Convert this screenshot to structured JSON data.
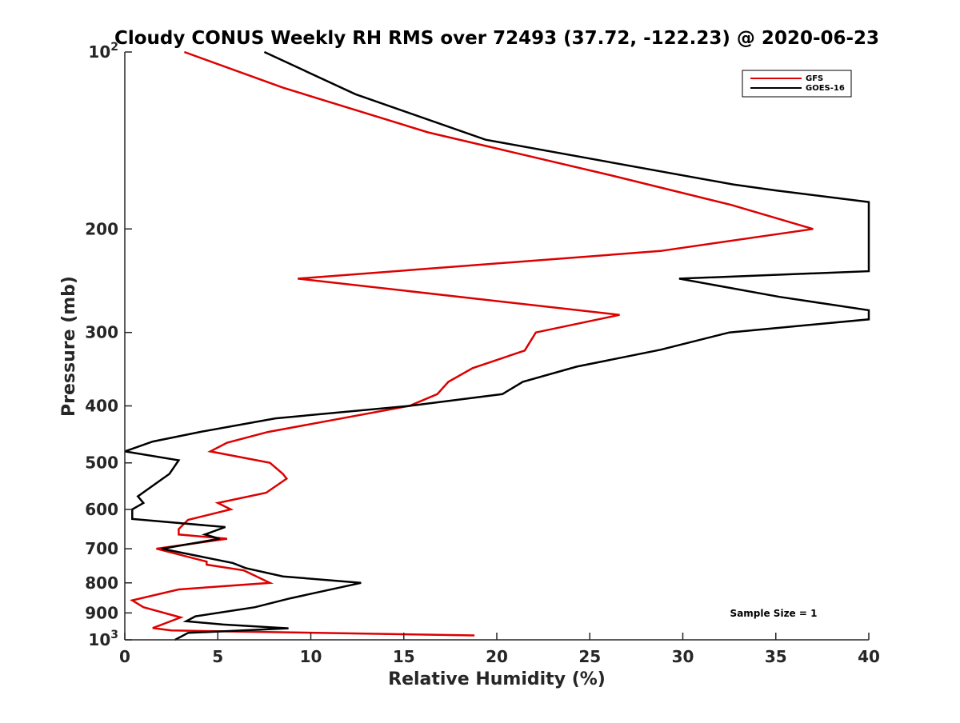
{
  "chart_data": {
    "type": "line",
    "title": "Cloudy CONUS Weekly RH RMS over 72493 (37.72, -122.23) @ 2020-06-23",
    "xlabel": "Relative Humidity (%)",
    "ylabel": "Pressure (mb)",
    "xlim": [
      0,
      40
    ],
    "ylim": [
      100,
      1000
    ],
    "y_scale": "log",
    "y_reversed": true,
    "x_ticks": [
      "0",
      "5",
      "10",
      "15",
      "20",
      "25",
      "30",
      "35",
      "40"
    ],
    "y_ticks": [
      {
        "value": 100,
        "base": "10",
        "exp": "2"
      },
      {
        "value": 200,
        "label": "200"
      },
      {
        "value": 300,
        "label": "300"
      },
      {
        "value": 400,
        "label": "400"
      },
      {
        "value": 500,
        "label": "500"
      },
      {
        "value": 600,
        "label": "600"
      },
      {
        "value": 700,
        "label": "700"
      },
      {
        "value": 800,
        "label": "800"
      },
      {
        "value": 900,
        "label": "900"
      },
      {
        "value": 1000,
        "base": "10",
        "exp": "3"
      }
    ],
    "grid": false,
    "legend_position": "top-right",
    "annotation": "Sample Size = 1",
    "series": [
      {
        "name": "GFS",
        "color": "#dd0000",
        "points": [
          [
            3.2,
            100
          ],
          [
            8.5,
            115
          ],
          [
            16.3,
            137
          ],
          [
            26.1,
            162
          ],
          [
            32.6,
            182
          ],
          [
            37.0,
            200
          ],
          [
            28.8,
            218
          ],
          [
            9.3,
            243
          ],
          [
            26.6,
            280
          ],
          [
            22.1,
            300
          ],
          [
            21.5,
            322
          ],
          [
            18.7,
            345
          ],
          [
            17.4,
            364
          ],
          [
            16.8,
            382
          ],
          [
            15.3,
            400
          ],
          [
            7.7,
            443
          ],
          [
            5.5,
            462
          ],
          [
            4.6,
            478
          ],
          [
            7.8,
            500
          ],
          [
            8.5,
            522
          ],
          [
            8.7,
            532
          ],
          [
            7.6,
            562
          ],
          [
            5.0,
            585
          ],
          [
            5.7,
            600
          ],
          [
            3.4,
            625
          ],
          [
            2.9,
            648
          ],
          [
            2.9,
            662
          ],
          [
            5.5,
            673
          ],
          [
            1.7,
            700
          ],
          [
            4.4,
            736
          ],
          [
            4.4,
            745
          ],
          [
            6.4,
            762
          ],
          [
            7.8,
            800
          ],
          [
            2.9,
            821
          ],
          [
            0.4,
            857
          ],
          [
            1.0,
            880
          ],
          [
            3.0,
            916
          ],
          [
            1.5,
            955
          ],
          [
            2.5,
            964
          ],
          [
            18.8,
            983
          ]
        ]
      },
      {
        "name": "GOES-16",
        "color": "#000000",
        "points": [
          [
            7.5,
            100
          ],
          [
            12.4,
            118
          ],
          [
            19.4,
            141
          ],
          [
            32.7,
            168
          ],
          [
            35.0,
            172
          ],
          [
            40.0,
            180
          ],
          [
            40.0,
            236
          ],
          [
            29.8,
            243
          ],
          [
            35.2,
            261
          ],
          [
            40.0,
            275
          ],
          [
            40.0,
            285
          ],
          [
            32.5,
            300
          ],
          [
            28.8,
            321
          ],
          [
            24.3,
            343
          ],
          [
            21.4,
            364
          ],
          [
            20.3,
            382
          ],
          [
            15.3,
            400
          ],
          [
            8.1,
            420
          ],
          [
            4.2,
            442
          ],
          [
            1.5,
            460
          ],
          [
            0.0,
            478
          ],
          [
            2.9,
            495
          ],
          [
            2.4,
            522
          ],
          [
            0.7,
            570
          ],
          [
            1.0,
            585
          ],
          [
            0.4,
            600
          ],
          [
            0.4,
            623
          ],
          [
            5.4,
            643
          ],
          [
            4.3,
            662
          ],
          [
            5.1,
            673
          ],
          [
            2.0,
            700
          ],
          [
            5.8,
            740
          ],
          [
            6.5,
            755
          ],
          [
            8.5,
            780
          ],
          [
            12.7,
            800
          ],
          [
            8.9,
            850
          ],
          [
            7.0,
            880
          ],
          [
            3.8,
            912
          ],
          [
            3.3,
            930
          ],
          [
            5.3,
            942
          ],
          [
            8.8,
            956
          ],
          [
            3.4,
            973
          ],
          [
            2.7,
            1000
          ]
        ]
      }
    ]
  }
}
